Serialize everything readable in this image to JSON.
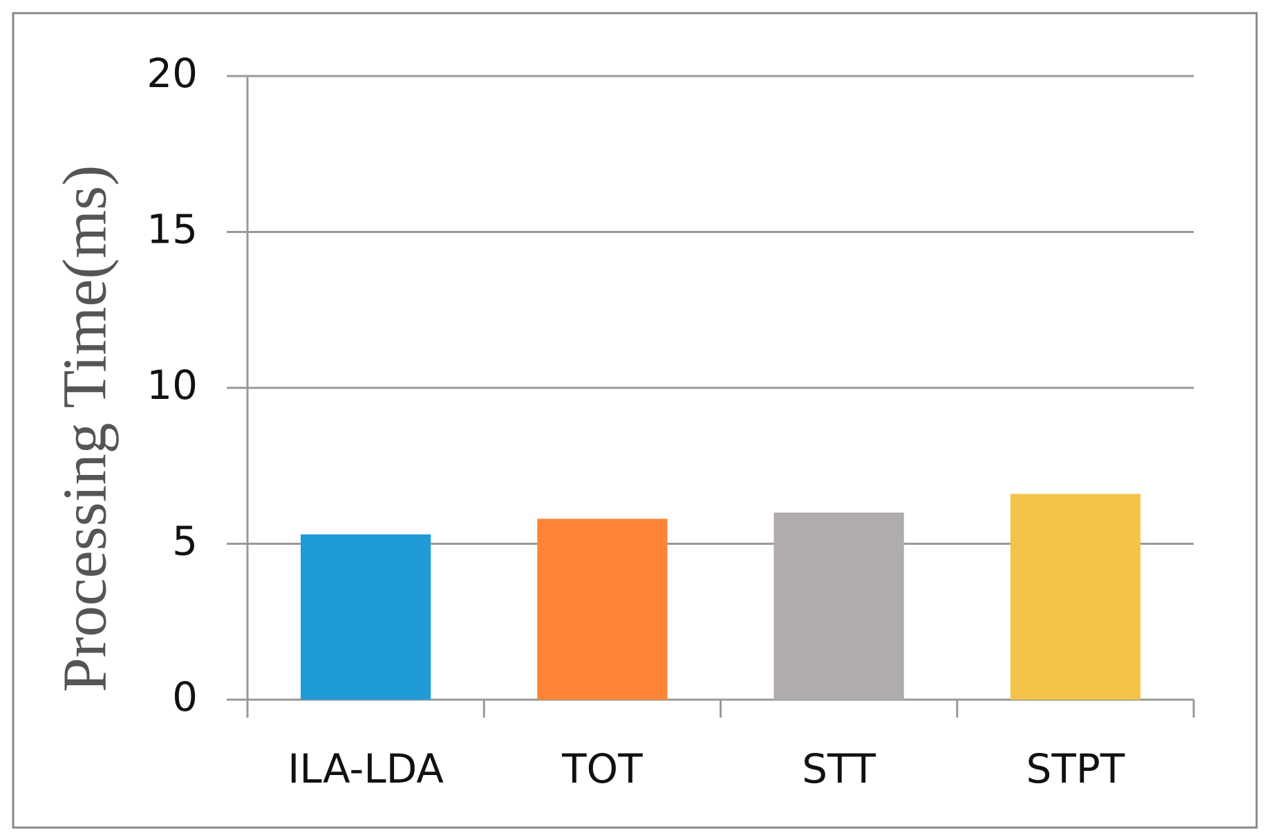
{
  "chart_data": {
    "type": "bar",
    "y_label": "Processing Time(ms)",
    "categories": [
      "ILA-LDA",
      "TOT",
      "STT",
      "STPT"
    ],
    "values": [
      5.3,
      5.8,
      6.0,
      6.6
    ],
    "colors": [
      "#1f9cd8",
      "#fd8535",
      "#b0acab",
      "#f4c448"
    ],
    "ylim": [
      0,
      20
    ],
    "yticks": [
      0,
      5,
      10,
      15,
      20
    ],
    "grid": true
  }
}
